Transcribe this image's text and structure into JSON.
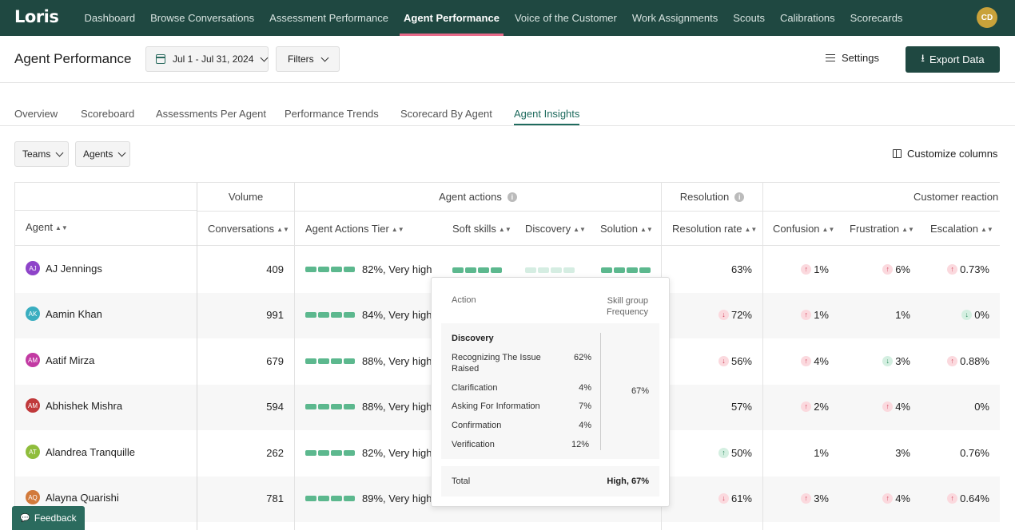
{
  "app": {
    "logo": "Loris",
    "user_initials": "CD"
  },
  "nav": {
    "items": [
      {
        "label": "Dashboard",
        "active": false
      },
      {
        "label": "Browse Conversations",
        "active": false
      },
      {
        "label": "Assessment Performance",
        "active": false
      },
      {
        "label": "Agent Performance",
        "active": true
      },
      {
        "label": "Voice of the Customer",
        "active": false
      },
      {
        "label": "Work Assignments",
        "active": false
      },
      {
        "label": "Scouts",
        "active": false
      },
      {
        "label": "Calibrations",
        "active": false
      },
      {
        "label": "Scorecards",
        "active": false
      }
    ]
  },
  "header": {
    "title": "Agent Performance",
    "date_range": "Jul 1 - Jul 31, 2024",
    "filters_label": "Filters",
    "settings_label": "Settings",
    "export_label": "Export Data"
  },
  "tabs": [
    {
      "label": "Overview",
      "active": false
    },
    {
      "label": "Scoreboard",
      "active": false
    },
    {
      "label": "Assessments Per Agent",
      "active": false
    },
    {
      "label": "Performance Trends",
      "active": false
    },
    {
      "label": "Scorecard By Agent",
      "active": false
    },
    {
      "label": "Agent Insights",
      "active": true
    }
  ],
  "toolbar": {
    "teams_label": "Teams",
    "agents_label": "Agents",
    "customize_label": "Customize columns"
  },
  "table": {
    "groups": {
      "volume": "Volume",
      "agent_actions": "Agent actions",
      "resolution": "Resolution",
      "customer_reaction": "Customer reaction"
    },
    "columns": {
      "agent": "Agent",
      "conversations": "Conversations",
      "tier": "Agent Actions Tier",
      "soft_skills": "Soft skills",
      "discovery": "Discovery",
      "solution": "Solution",
      "resolution_rate": "Resolution rate",
      "confusion": "Confusion",
      "frustration": "Frustration",
      "escalation": "Escalation"
    },
    "rows": [
      {
        "initials": "AJ",
        "name": "AJ Jennings",
        "avatar_color": "#8e44c9",
        "conversations": "409",
        "tier": "82%, Very high",
        "resolution": "63%",
        "res_arrow": "",
        "confusion": "1%",
        "conf_arrow": "up-red",
        "frustration": "6%",
        "frus_arrow": "up-red",
        "escalation": "0.73%",
        "esc_arrow": "up-red"
      },
      {
        "initials": "AK",
        "name": "Aamin Khan",
        "avatar_color": "#3aaec0",
        "conversations": "991",
        "tier": "84%, Very high",
        "resolution": "72%",
        "res_arrow": "down-red",
        "confusion": "1%",
        "conf_arrow": "up-red",
        "frustration": "1%",
        "frus_arrow": "",
        "escalation": "0%",
        "esc_arrow": "down-green"
      },
      {
        "initials": "AM",
        "name": "Aatif Mirza",
        "avatar_color": "#c23aa3",
        "conversations": "679",
        "tier": "88%, Very high",
        "resolution": "56%",
        "res_arrow": "down-red",
        "confusion": "4%",
        "conf_arrow": "up-red",
        "frustration": "3%",
        "frus_arrow": "down-green",
        "escalation": "0.88%",
        "esc_arrow": "up-red"
      },
      {
        "initials": "AM",
        "name": "Abhishek Mishra",
        "avatar_color": "#c0393b",
        "conversations": "594",
        "tier": "88%, Very high",
        "resolution": "57%",
        "res_arrow": "",
        "confusion": "2%",
        "conf_arrow": "up-red",
        "frustration": "4%",
        "frus_arrow": "up-red",
        "escalation": "0%",
        "esc_arrow": ""
      },
      {
        "initials": "AT",
        "name": "Alandrea Tranquille",
        "avatar_color": "#8fbd3c",
        "conversations": "262",
        "tier": "82%, Very high",
        "resolution": "50%",
        "res_arrow": "up-green",
        "confusion": "1%",
        "conf_arrow": "",
        "frustration": "3%",
        "frus_arrow": "",
        "escalation": "0.76%",
        "esc_arrow": ""
      },
      {
        "initials": "AQ",
        "name": "Alayna Quarishi",
        "avatar_color": "#d27a3b",
        "conversations": "781",
        "tier": "89%, Very high",
        "resolution": "61%",
        "res_arrow": "down-red",
        "confusion": "3%",
        "conf_arrow": "up-red",
        "frustration": "4%",
        "frus_arrow": "up-red",
        "escalation": "0.64%",
        "esc_arrow": "up-red"
      }
    ]
  },
  "popover": {
    "col_action": "Action",
    "col_freq": "Skill group Frequency",
    "group": "Discovery",
    "items": [
      {
        "label": "Recognizing The Issue Raised",
        "value": "62%"
      },
      {
        "label": "Clarification",
        "value": "4%"
      },
      {
        "label": "Asking For Information",
        "value": "7%"
      },
      {
        "label": "Confirmation",
        "value": "4%"
      },
      {
        "label": "Verification",
        "value": "12%"
      }
    ],
    "group_frequency": "67%",
    "total_label": "Total",
    "total_value": "High, 67%"
  },
  "feedback_label": "Feedback"
}
